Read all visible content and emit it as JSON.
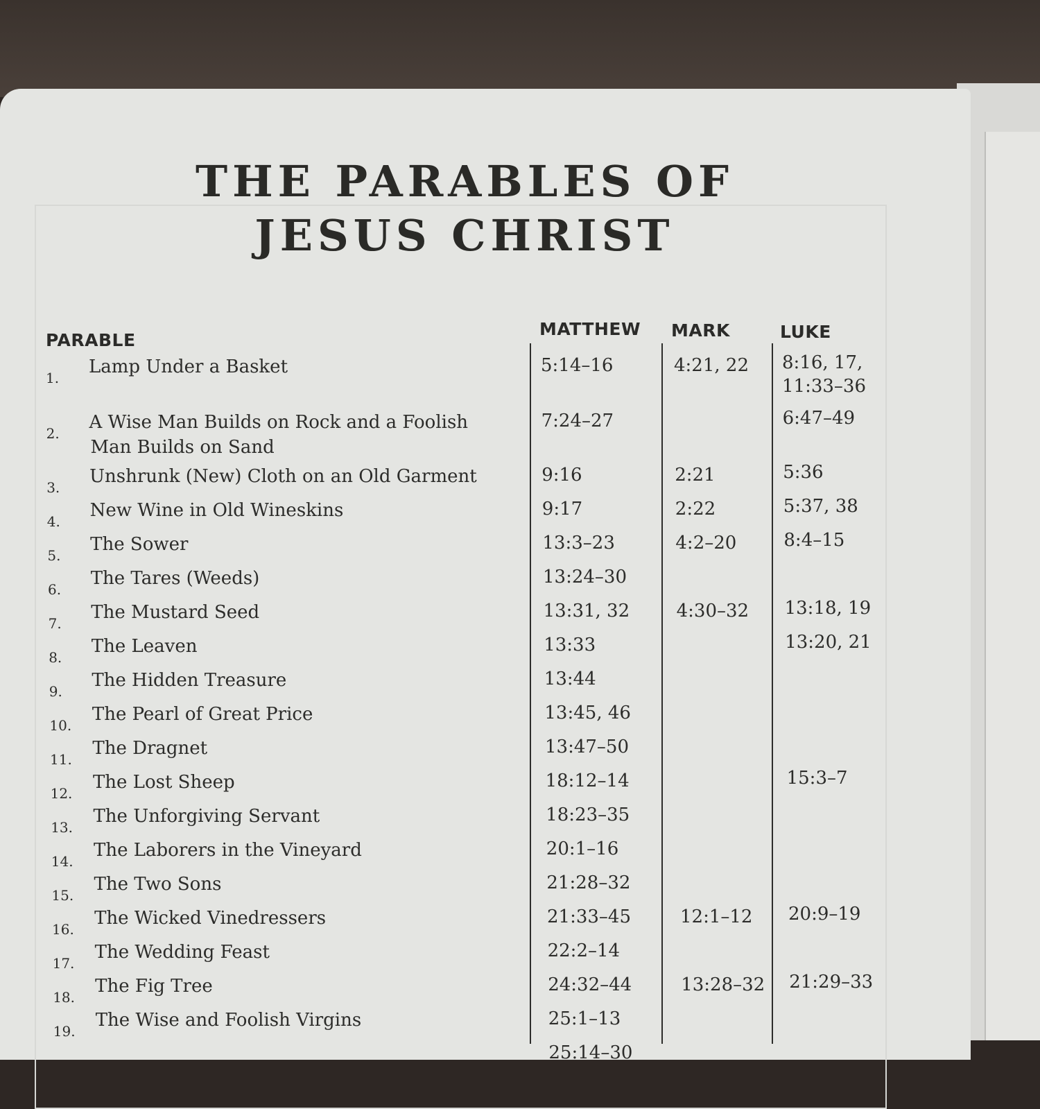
{
  "title": {
    "line1": "THE PARABLES OF",
    "line2": "JESUS CHRIST"
  },
  "headers": {
    "parable": "PARABLE",
    "matthew": "MATTHEW",
    "mark": "MARK",
    "luke": "LUKE"
  },
  "rows": [
    {
      "num": "1.",
      "parable": "Lamp Under a Basket",
      "parable2": "",
      "matthew": "5:14–16",
      "mark": "4:21, 22",
      "luke": "8:16, 17,",
      "luke2": "11:33–36"
    },
    {
      "num": "2.",
      "parable": "A Wise Man Builds on Rock and a Foolish",
      "parable2": "Man Builds on Sand",
      "matthew": "7:24–27",
      "mark": "",
      "luke": "6:47–49",
      "luke2": ""
    },
    {
      "num": "3.",
      "parable": "Unshrunk (New) Cloth on an Old Garment",
      "parable2": "",
      "matthew": "9:16",
      "mark": "2:21",
      "luke": "5:36",
      "luke2": ""
    },
    {
      "num": "4.",
      "parable": "New Wine in Old Wineskins",
      "parable2": "",
      "matthew": "9:17",
      "mark": "2:22",
      "luke": "5:37, 38",
      "luke2": ""
    },
    {
      "num": "5.",
      "parable": "The Sower",
      "parable2": "",
      "matthew": "13:3–23",
      "mark": "4:2–20",
      "luke": "8:4–15",
      "luke2": ""
    },
    {
      "num": "6.",
      "parable": "The Tares (Weeds)",
      "parable2": "",
      "matthew": "13:24–30",
      "mark": "",
      "luke": "",
      "luke2": ""
    },
    {
      "num": "7.",
      "parable": "The Mustard Seed",
      "parable2": "",
      "matthew": "13:31, 32",
      "mark": "4:30–32",
      "luke": "13:18, 19",
      "luke2": ""
    },
    {
      "num": "8.",
      "parable": "The Leaven",
      "parable2": "",
      "matthew": "13:33",
      "mark": "",
      "luke": "13:20, 21",
      "luke2": ""
    },
    {
      "num": "9.",
      "parable": "The Hidden Treasure",
      "parable2": "",
      "matthew": "13:44",
      "mark": "",
      "luke": "",
      "luke2": ""
    },
    {
      "num": "10.",
      "parable": "The Pearl of Great Price",
      "parable2": "",
      "matthew": "13:45, 46",
      "mark": "",
      "luke": "",
      "luke2": ""
    },
    {
      "num": "11.",
      "parable": "The Dragnet",
      "parable2": "",
      "matthew": "13:47–50",
      "mark": "",
      "luke": "",
      "luke2": ""
    },
    {
      "num": "12.",
      "parable": "The Lost Sheep",
      "parable2": "",
      "matthew": "18:12–14",
      "mark": "",
      "luke": "15:3–7",
      "luke2": ""
    },
    {
      "num": "13.",
      "parable": "The Unforgiving Servant",
      "parable2": "",
      "matthew": "18:23–35",
      "mark": "",
      "luke": "",
      "luke2": ""
    },
    {
      "num": "14.",
      "parable": "The Laborers in the Vineyard",
      "parable2": "",
      "matthew": "20:1–16",
      "mark": "",
      "luke": "",
      "luke2": ""
    },
    {
      "num": "15.",
      "parable": "The Two Sons",
      "parable2": "",
      "matthew": "21:28–32",
      "mark": "",
      "luke": "",
      "luke2": ""
    },
    {
      "num": "16.",
      "parable": "The Wicked Vinedressers",
      "parable2": "",
      "matthew": "21:33–45",
      "mark": "12:1–12",
      "luke": "20:9–19",
      "luke2": ""
    },
    {
      "num": "17.",
      "parable": "The Wedding Feast",
      "parable2": "",
      "matthew": "22:2–14",
      "mark": "",
      "luke": "",
      "luke2": ""
    },
    {
      "num": "18.",
      "parable": "The Fig Tree",
      "parable2": "",
      "matthew": "24:32–44",
      "mark": "13:28–32",
      "luke": "21:29–33",
      "luke2": ""
    },
    {
      "num": "19.",
      "parable": "The Wise and Foolish Virgins",
      "parable2": "",
      "matthew": "25:1–13",
      "mark": "",
      "luke": "",
      "luke2": ""
    },
    {
      "num": "",
      "parable": "",
      "parable2": "",
      "matthew": "25:14–30",
      "mark": "",
      "luke": "",
      "luke2": ""
    }
  ]
}
